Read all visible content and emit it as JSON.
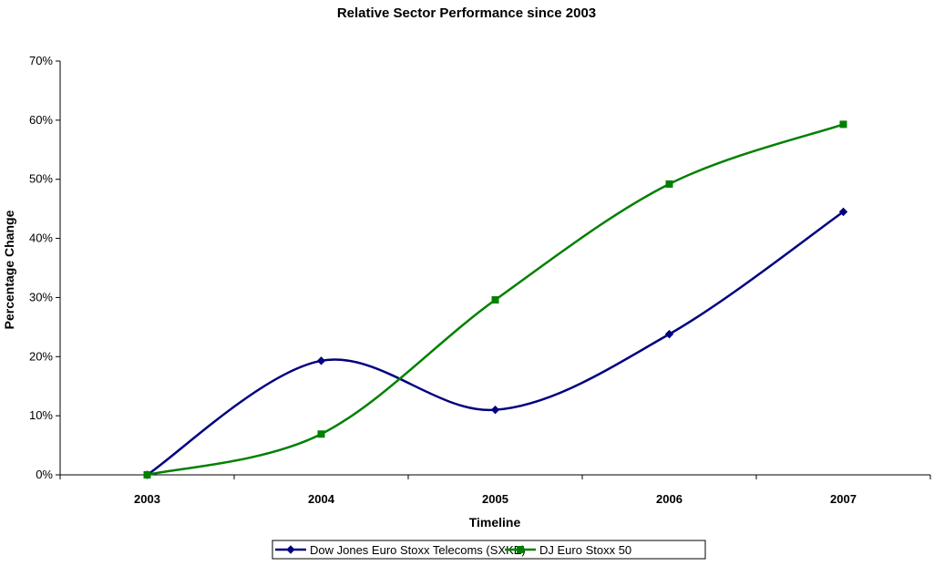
{
  "chart_data": {
    "type": "line",
    "title": "Relative Sector Performance since 2003",
    "xlabel": "Timeline",
    "ylabel": "Percentage Change",
    "categories": [
      "2003",
      "2004",
      "2005",
      "2006",
      "2007"
    ],
    "ylim": [
      0,
      70
    ],
    "yticks": [
      "0%",
      "10%",
      "20%",
      "30%",
      "40%",
      "50%",
      "60%",
      "70%"
    ],
    "grid": false,
    "smooth": true,
    "legend_position": "bottom",
    "series": [
      {
        "name": "Dow Jones Euro Stoxx Telecoms (SXKE)",
        "color": "#000080",
        "marker": "diamond",
        "values": [
          0,
          19.3,
          11,
          23.8,
          44.5
        ]
      },
      {
        "name": "DJ Euro Stoxx 50",
        "color": "#008000",
        "marker": "square",
        "values": [
          0,
          6.9,
          29.6,
          49.2,
          59.3
        ]
      }
    ]
  }
}
